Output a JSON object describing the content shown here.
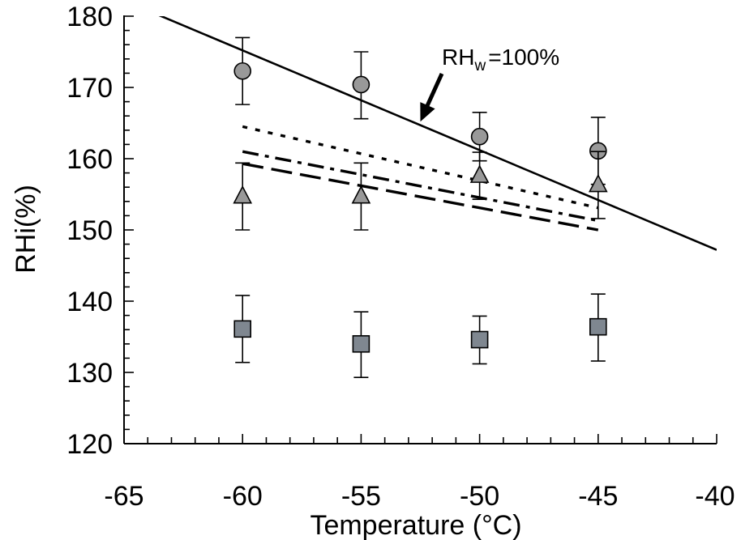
{
  "chart_data": {
    "type": "scatter",
    "title": "",
    "xlabel": "Temperature (°C)",
    "ylabel": "RHi(%)",
    "xlim": [
      -65,
      -40
    ],
    "ylim": [
      120,
      180
    ],
    "x_ticks": [
      "-65",
      "-60",
      "-55",
      "-50",
      "-45",
      "-40"
    ],
    "y_ticks": [
      "120",
      "130",
      "140",
      "150",
      "160",
      "170",
      "180"
    ],
    "grid": false,
    "legend": "none",
    "series": [
      {
        "marker": "circle",
        "color": "#999999",
        "points": [
          {
            "x": -60,
            "y": 172.3,
            "err_low": 167.6,
            "err_high": 177.0
          },
          {
            "x": -55,
            "y": 170.4,
            "err_low": 165.6,
            "err_high": 175.0
          },
          {
            "x": -50,
            "y": 163.1,
            "err_low": 159.7,
            "err_high": 166.5
          },
          {
            "x": -45,
            "y": 161.1,
            "err_low": 156.4,
            "err_high": 165.8
          }
        ]
      },
      {
        "marker": "triangle",
        "color": "#999999",
        "points": [
          {
            "x": -60,
            "y": 154.7,
            "err_low": 150.0,
            "err_high": 159.4
          },
          {
            "x": -55,
            "y": 154.7,
            "err_low": 150.0,
            "err_high": 159.4
          },
          {
            "x": -50,
            "y": 157.6,
            "err_low": 154.3,
            "err_high": 160.9
          },
          {
            "x": -45,
            "y": 156.3,
            "err_low": 151.6,
            "err_high": 161.0
          }
        ]
      },
      {
        "marker": "square",
        "color": "#7f8790",
        "points": [
          {
            "x": -60,
            "y": 136.1,
            "err_low": 131.4,
            "err_high": 140.8
          },
          {
            "x": -55,
            "y": 134.0,
            "err_low": 129.3,
            "err_high": 138.5
          },
          {
            "x": -50,
            "y": 134.6,
            "err_low": 131.2,
            "err_high": 137.9
          },
          {
            "x": -45,
            "y": 136.4,
            "err_low": 131.6,
            "err_high": 141.0
          }
        ]
      }
    ],
    "lines": [
      {
        "style": "solid",
        "points": [
          [
            -65,
            182.2
          ],
          [
            -40,
            147.2
          ]
        ]
      },
      {
        "style": "dotted",
        "points": [
          [
            -60,
            164.5
          ],
          [
            -45,
            153.1
          ]
        ]
      },
      {
        "style": "dash-dot",
        "points": [
          [
            -60,
            161.0
          ],
          [
            -45,
            151.3
          ]
        ]
      },
      {
        "style": "long-dash",
        "points": [
          [
            -60,
            159.3
          ],
          [
            -45,
            150.0
          ]
        ]
      }
    ],
    "annotations": [
      {
        "text_main": "RH",
        "text_sub": "w",
        "text_rest": "=100%",
        "target": {
          "x": -52.5,
          "y": 165.2
        }
      }
    ]
  }
}
